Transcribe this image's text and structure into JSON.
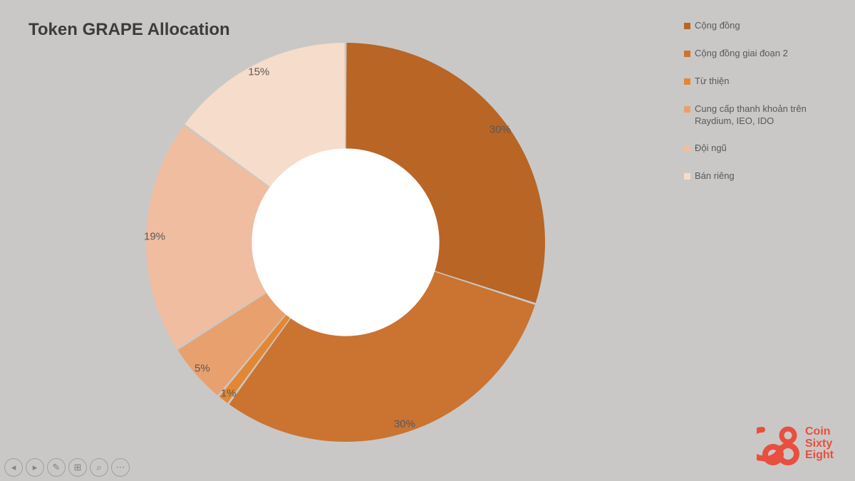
{
  "title": "Token GRAPE Allocation",
  "chart": {
    "type": "donut",
    "inner_radius_ratio": 0.47,
    "outer_radius": 280,
    "gap_deg": 0.6,
    "background_color": "#c9c8c7",
    "hole_color": "#ffffff",
    "start_angle_deg": -90,
    "datalabel_fontsize": 15,
    "datalabel_color": "#595959",
    "slices": [
      {
        "label": "Cộng đồng",
        "value": 30,
        "display": "30%",
        "color": "#b86525"
      },
      {
        "label": "Cộng đồng giai đoạn 2",
        "value": 30,
        "display": "30%",
        "color": "#cb7331"
      },
      {
        "label": "Từ thiện",
        "value": 1,
        "display": "1%",
        "color": "#e48734"
      },
      {
        "label": "Cung cấp thanh khoản trên Raydium, IEO, IDO",
        "value": 5,
        "display": "5%",
        "color": "#e9a06f"
      },
      {
        "label": "Đội ngũ",
        "value": 19,
        "display": "19%",
        "color": "#f0bda0"
      },
      {
        "label": "Bán riêng",
        "value": 15,
        "display": "15%",
        "color": "#f6dcca"
      }
    ]
  },
  "legend": {
    "title_fontsize": 13,
    "text_color": "#595959"
  },
  "toolbar": {
    "buttons": [
      {
        "name": "prev-slide-button",
        "glyph": "◂"
      },
      {
        "name": "next-slide-button",
        "glyph": "▸"
      },
      {
        "name": "pen-button",
        "glyph": "✎"
      },
      {
        "name": "view-all-button",
        "glyph": "⊞"
      },
      {
        "name": "zoom-button",
        "glyph": "⌕"
      },
      {
        "name": "more-options-button",
        "glyph": "⋯"
      }
    ]
  },
  "logo": {
    "color": "#e94f3e",
    "line1": "Coin",
    "line2": "Sixty",
    "line3": "Eight"
  }
}
